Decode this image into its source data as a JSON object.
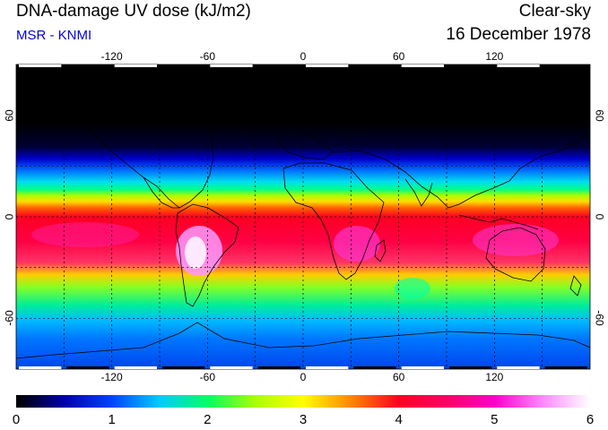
{
  "header": {
    "title": "DNA-damage UV dose (kJ/m2)",
    "subtitle": "MSR - KNMI",
    "sky_condition": "Clear-sky",
    "date": "16 December 1978"
  },
  "colors": {
    "subtitle": "#0000dd",
    "scale": [
      "#000000",
      "#0000aa",
      "#0044ff",
      "#00ccff",
      "#00ff66",
      "#aaff00",
      "#ffff00",
      "#ff8800",
      "#ff0022",
      "#ff0066",
      "#ff00cc",
      "#ff88ff",
      "#ffffff"
    ]
  },
  "map": {
    "longitude_ticks": [
      "-120",
      "-60",
      "0",
      "60",
      "120"
    ],
    "longitude_values": [
      -120,
      -60,
      0,
      60,
      120
    ],
    "latitude_ticks": [
      "60",
      "0",
      "-60"
    ],
    "latitude_values": [
      60,
      0,
      -60
    ],
    "lon_range": [
      -180,
      180
    ],
    "lat_range": [
      -90,
      90
    ]
  },
  "colorbar": {
    "labels": [
      "0",
      "1",
      "2",
      "3",
      "4",
      "5",
      "6"
    ],
    "min": 0,
    "max": 6
  }
}
